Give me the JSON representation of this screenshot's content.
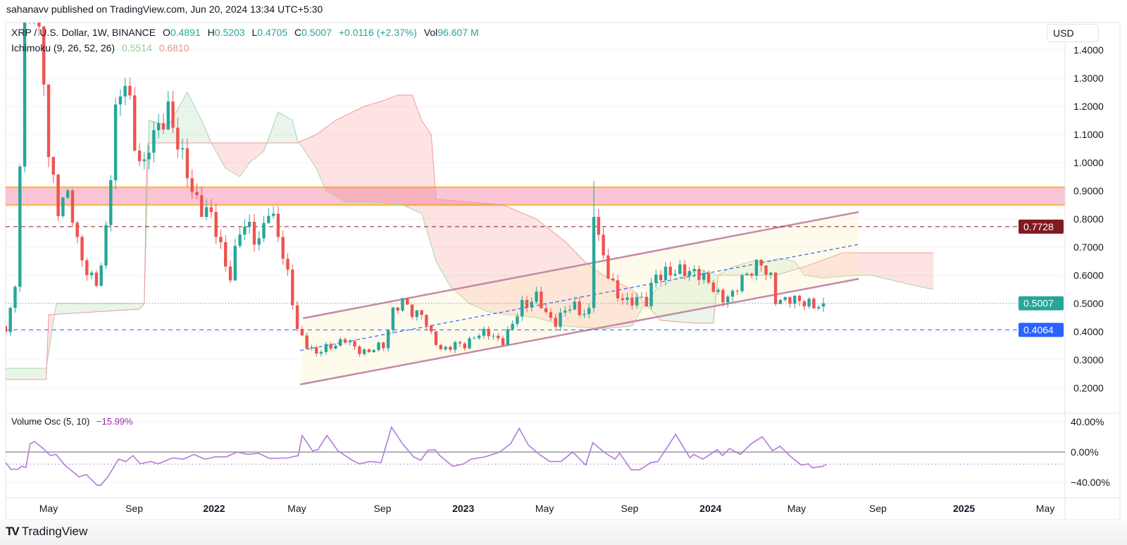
{
  "header": {
    "published": "sahanavv published on TradingView.com, Jun 20, 2024 13:34 UTC+5:30"
  },
  "legend": {
    "symbol": "XRP / U.S. Dollar, 1W, BINANCE",
    "o_label": "O",
    "o": "0.4891",
    "h_label": "H",
    "h": "0.5203",
    "l_label": "L",
    "l": "0.4705",
    "c_label": "C",
    "c": "0.5007",
    "change": "+0.0116 (+2.37%)",
    "vol_label": "Vol",
    "vol": "96.607 M",
    "ichimoku": "Ichimoku (9, 26, 52, 26)",
    "ichimoku_a": "0.5514",
    "ichimoku_b": "0.6810",
    "volosc": "Volume Osc (5, 10)",
    "volosc_value": "−15.99%"
  },
  "price_axis": {
    "currency": "USD",
    "ticks": [
      "1.4000",
      "1.3000",
      "1.2000",
      "1.1000",
      "1.0000",
      "0.9000",
      "0.8000",
      "0.7000",
      "0.6000",
      "0.5000",
      "0.4000",
      "0.3000",
      "0.2000"
    ],
    "badges": [
      {
        "value": "0.7728",
        "color": "#801922"
      },
      {
        "value": "0.5007",
        "color": "#26a69a"
      },
      {
        "value": "0.4064",
        "color": "#2962ff"
      }
    ]
  },
  "osc_axis": {
    "ticks": [
      "40.00%",
      "0.00%",
      "−40.00%"
    ]
  },
  "time_axis": {
    "labels": [
      {
        "text": "May",
        "bold": false,
        "week": 0
      },
      {
        "text": "Sep",
        "bold": false,
        "week": 17.9
      },
      {
        "text": "2022",
        "bold": true,
        "week": 34.6
      },
      {
        "text": "May",
        "bold": false,
        "week": 51.9
      },
      {
        "text": "Sep",
        "bold": false,
        "week": 69.8
      },
      {
        "text": "2023",
        "bold": true,
        "week": 86.7
      },
      {
        "text": "May",
        "bold": false,
        "week": 103.7
      },
      {
        "text": "Sep",
        "bold": false,
        "week": 121.5
      },
      {
        "text": "2024",
        "bold": true,
        "week": 138.4
      },
      {
        "text": "May",
        "bold": false,
        "week": 156.4
      },
      {
        "text": "Sep",
        "bold": false,
        "week": 173.4
      },
      {
        "text": "2025",
        "bold": true,
        "week": 191.4
      },
      {
        "text": "May",
        "bold": false,
        "week": 208.4
      }
    ]
  },
  "footer": {
    "brand": "TradingView"
  },
  "colors": {
    "up": "#26a69a",
    "down": "#ef5350",
    "cloud_green": "#a5d6a7",
    "cloud_red": "#ef9a9a",
    "channel": "#c58aa6",
    "zone": "#f8bbd0",
    "zone_border": "#ffb74d",
    "osc": "#b07cd6"
  },
  "chart_data": {
    "type": "candlestick",
    "title": "XRP / U.S. Dollar, 1W, BINANCE",
    "ylim": [
      0.2,
      1.4
    ],
    "osc_ylim": [
      -40,
      40
    ],
    "price_path": [
      [
        -9,
        0.42
      ],
      [
        -7,
        0.55
      ],
      [
        -5,
        1.45
      ],
      [
        -3,
        1.6
      ],
      [
        -1,
        1.3
      ],
      [
        0,
        1.0
      ],
      [
        2,
        0.85
      ],
      [
        4,
        0.9
      ],
      [
        6,
        0.7
      ],
      [
        8,
        0.62
      ],
      [
        10,
        0.58
      ],
      [
        11,
        0.62
      ],
      [
        12,
        0.75
      ],
      [
        14,
        1.2
      ],
      [
        16,
        1.3
      ],
      [
        18,
        1.05
      ],
      [
        20,
        1.0
      ],
      [
        21,
        1.08
      ],
      [
        23,
        1.1
      ],
      [
        25,
        1.2
      ],
      [
        26,
        1.15
      ],
      [
        28,
        1.0
      ],
      [
        30,
        0.9
      ],
      [
        32,
        0.85
      ],
      [
        34,
        0.8
      ],
      [
        36,
        0.7
      ],
      [
        38,
        0.6
      ],
      [
        40,
        0.75
      ],
      [
        42,
        0.78
      ],
      [
        44,
        0.72
      ],
      [
        46,
        0.82
      ],
      [
        48,
        0.76
      ],
      [
        50,
        0.6
      ],
      [
        52,
        0.4
      ],
      [
        54,
        0.36
      ],
      [
        56,
        0.32
      ],
      [
        58,
        0.34
      ],
      [
        60,
        0.36
      ],
      [
        62,
        0.37
      ],
      [
        64,
        0.34
      ],
      [
        67,
        0.33
      ],
      [
        70,
        0.35
      ],
      [
        72,
        0.48
      ],
      [
        74,
        0.5
      ],
      [
        76,
        0.47
      ],
      [
        78,
        0.47
      ],
      [
        80,
        0.38
      ],
      [
        82,
        0.34
      ],
      [
        84,
        0.35
      ],
      [
        87,
        0.35
      ],
      [
        89,
        0.39
      ],
      [
        92,
        0.39
      ],
      [
        95,
        0.37
      ],
      [
        97,
        0.42
      ],
      [
        99,
        0.5
      ],
      [
        102,
        0.52
      ],
      [
        104,
        0.46
      ],
      [
        106,
        0.44
      ],
      [
        108,
        0.47
      ],
      [
        110,
        0.49
      ],
      [
        112,
        0.47
      ],
      [
        113,
        0.47
      ],
      [
        114,
        0.82
      ],
      [
        115,
        0.72
      ],
      [
        117,
        0.62
      ],
      [
        119,
        0.52
      ],
      [
        121,
        0.5
      ],
      [
        123,
        0.53
      ],
      [
        125,
        0.5
      ],
      [
        127,
        0.6
      ],
      [
        129,
        0.62
      ],
      [
        131,
        0.6
      ],
      [
        133,
        0.62
      ],
      [
        135,
        0.62
      ],
      [
        137,
        0.58
      ],
      [
        139,
        0.56
      ],
      [
        141,
        0.52
      ],
      [
        143,
        0.52
      ],
      [
        145,
        0.6
      ],
      [
        147,
        0.62
      ],
      [
        149,
        0.63
      ],
      [
        151,
        0.6
      ],
      [
        152,
        0.52
      ],
      [
        154,
        0.5
      ],
      [
        156,
        0.52
      ],
      [
        158,
        0.51
      ],
      [
        160,
        0.48
      ],
      [
        162,
        0.5007
      ]
    ],
    "last_candle": {
      "open": 0.4891,
      "high": 0.5203,
      "low": 0.4705,
      "close": 0.5007
    },
    "notable_wicks": [
      {
        "week": 114,
        "high": 0.935
      }
    ],
    "ichimoku_span_a": [
      [
        -9,
        0.27
      ],
      [
        -0.5,
        0.27
      ],
      [
        1.6,
        0.5
      ],
      [
        20,
        0.5
      ],
      [
        21,
        1.15
      ],
      [
        25,
        1.13
      ],
      [
        29,
        1.25
      ],
      [
        32,
        1.15
      ],
      [
        34,
        1.07
      ],
      [
        37,
        0.98
      ],
      [
        40,
        0.95
      ],
      [
        42,
        1.0
      ],
      [
        45,
        1.04
      ],
      [
        48,
        1.18
      ],
      [
        51,
        1.15
      ],
      [
        52,
        1.08
      ],
      [
        56,
        0.98
      ],
      [
        58,
        0.9
      ],
      [
        62,
        0.86
      ],
      [
        68,
        0.86
      ],
      [
        74,
        0.85
      ],
      [
        78,
        0.82
      ],
      [
        81,
        0.65
      ],
      [
        84,
        0.56
      ],
      [
        88,
        0.5
      ],
      [
        92,
        0.47
      ],
      [
        96,
        0.46
      ],
      [
        102,
        0.45
      ],
      [
        108,
        0.42
      ],
      [
        116,
        0.41
      ],
      [
        122,
        0.42
      ],
      [
        124,
        0.48
      ],
      [
        127,
        0.55
      ],
      [
        130,
        0.58
      ],
      [
        136,
        0.62
      ],
      [
        140,
        0.6
      ],
      [
        143,
        0.63
      ],
      [
        147,
        0.65
      ],
      [
        150,
        0.65
      ],
      [
        153,
        0.66
      ],
      [
        156,
        0.65
      ],
      [
        158,
        0.6
      ],
      [
        162,
        0.59
      ],
      [
        168,
        0.6
      ],
      [
        172,
        0.6
      ],
      [
        177,
        0.58
      ],
      [
        182,
        0.56
      ],
      [
        185,
        0.55
      ]
    ],
    "ichimoku_span_b": [
      [
        -9,
        0.23
      ],
      [
        -0.5,
        0.23
      ],
      [
        0,
        0.46
      ],
      [
        19,
        0.48
      ],
      [
        20,
        0.5
      ],
      [
        20.6,
        1.07
      ],
      [
        52,
        1.07
      ],
      [
        56,
        1.1
      ],
      [
        60,
        1.15
      ],
      [
        66,
        1.2
      ],
      [
        70,
        1.22
      ],
      [
        73,
        1.24
      ],
      [
        76,
        1.24
      ],
      [
        78,
        1.15
      ],
      [
        80,
        1.1
      ],
      [
        81,
        0.87
      ],
      [
        88,
        0.86
      ],
      [
        95,
        0.85
      ],
      [
        102,
        0.8
      ],
      [
        108,
        0.72
      ],
      [
        112,
        0.65
      ],
      [
        116,
        0.6
      ],
      [
        122,
        0.55
      ],
      [
        128,
        0.44
      ],
      [
        135,
        0.43
      ],
      [
        139,
        0.43
      ],
      [
        140,
        0.6
      ],
      [
        147,
        0.6
      ],
      [
        152,
        0.6
      ],
      [
        158,
        0.63
      ],
      [
        166,
        0.68
      ],
      [
        185,
        0.68
      ]
    ],
    "resistance_zone": [
      0.85,
      0.9125
    ],
    "horizontal_levels": [
      {
        "price": 0.7728,
        "style": "dashed",
        "color": "#801922"
      },
      {
        "price": 0.5007,
        "style": "dotted",
        "color": "#26a69a"
      },
      {
        "price": 0.4064,
        "style": "dashed",
        "color": "#2962ff"
      }
    ],
    "channel_upper": [
      [
        53.2,
        0.4475
      ],
      [
        169.4,
        0.825
      ]
    ],
    "channel_lower": [
      [
        52.6,
        0.2125
      ],
      [
        169.4,
        0.5875
      ]
    ],
    "channel_mid": [
      [
        52.6,
        0.333
      ],
      [
        169.4,
        0.71
      ]
    ],
    "volume_osc": [
      [
        -8.96,
        -14
      ],
      [
        -7.9,
        -22.8
      ],
      [
        -6.4,
        -22.8
      ],
      [
        -5.65,
        -18.8
      ],
      [
        -4.75,
        -20.3
      ],
      [
        -3.85,
        10.9
      ],
      [
        -2.95,
        14
      ],
      [
        -1.14,
        4.7
      ],
      [
        0.36,
        -4.7
      ],
      [
        1.56,
        -3.1
      ],
      [
        3.37,
        -17.2
      ],
      [
        6.37,
        -32.8
      ],
      [
        7.88,
        -29.7
      ],
      [
        10.13,
        -43.8
      ],
      [
        10.88,
        -43.8
      ],
      [
        12.39,
        -32.8
      ],
      [
        13.59,
        -20.3
      ],
      [
        14.64,
        -9.4
      ],
      [
        16.14,
        -12.5
      ],
      [
        17.65,
        -4.7
      ],
      [
        19.15,
        -15.6
      ],
      [
        21.4,
        -12.5
      ],
      [
        22.9,
        -15.6
      ],
      [
        25.9,
        -7.8
      ],
      [
        28.2,
        -9.4
      ],
      [
        30.4,
        -3.1
      ],
      [
        32.7,
        -9.4
      ],
      [
        34.9,
        -6.3
      ],
      [
        37.2,
        -6.3
      ],
      [
        39.4,
        0
      ],
      [
        41.7,
        -3.1
      ],
      [
        43.9,
        -1.6
      ],
      [
        46.2,
        -8.4
      ],
      [
        50,
        -7.8
      ],
      [
        52.2,
        -4.7
      ],
      [
        53,
        21.9
      ],
      [
        55.2,
        1.6
      ],
      [
        56.3,
        3.1
      ],
      [
        58.2,
        21.9
      ],
      [
        60.5,
        1.6
      ],
      [
        63.5,
        -10.9
      ],
      [
        65,
        -15.6
      ],
      [
        67.2,
        -12.5
      ],
      [
        69.5,
        -14
      ],
      [
        71.7,
        32.8
      ],
      [
        74,
        10.9
      ],
      [
        76.3,
        -6.3
      ],
      [
        77.8,
        -10.9
      ],
      [
        79.3,
        2.2
      ],
      [
        80.8,
        3.1
      ],
      [
        81.8,
        -4.7
      ],
      [
        84.5,
        -18.8
      ],
      [
        86.8,
        -15.6
      ],
      [
        88.3,
        -9.4
      ],
      [
        91.3,
        -6.3
      ],
      [
        94.3,
        0
      ],
      [
        96.6,
        10.9
      ],
      [
        98.4,
        31.3
      ],
      [
        100.3,
        9.4
      ],
      [
        102.6,
        -3.1
      ],
      [
        104.8,
        -12.5
      ],
      [
        107.1,
        -12.5
      ],
      [
        109.6,
        0
      ],
      [
        112.3,
        -17.2
      ],
      [
        113.8,
        12.5
      ],
      [
        116.1,
        0
      ],
      [
        118.4,
        -9.4
      ],
      [
        119.4,
        -1.6
      ],
      [
        121.8,
        -23.4
      ],
      [
        123.6,
        -23.4
      ],
      [
        125.9,
        -14
      ],
      [
        127.4,
        -12.5
      ],
      [
        131.1,
        23.4
      ],
      [
        134.1,
        -7.8
      ],
      [
        134.9,
        -3.1
      ],
      [
        136.8,
        -9.4
      ],
      [
        139.8,
        3.1
      ],
      [
        140.9,
        -4.7
      ],
      [
        142.4,
        4.7
      ],
      [
        144.6,
        -3.1
      ],
      [
        146.9,
        10.9
      ],
      [
        149.2,
        20.3
      ],
      [
        151.4,
        1.6
      ],
      [
        152.9,
        7.8
      ],
      [
        155.2,
        -6.3
      ],
      [
        157.4,
        -17.2
      ],
      [
        158.9,
        -15.6
      ],
      [
        159.7,
        -20.9
      ],
      [
        161.9,
        -18.8
      ],
      [
        162.7,
        -15.99
      ]
    ],
    "volume_osc_last": -15.99
  }
}
